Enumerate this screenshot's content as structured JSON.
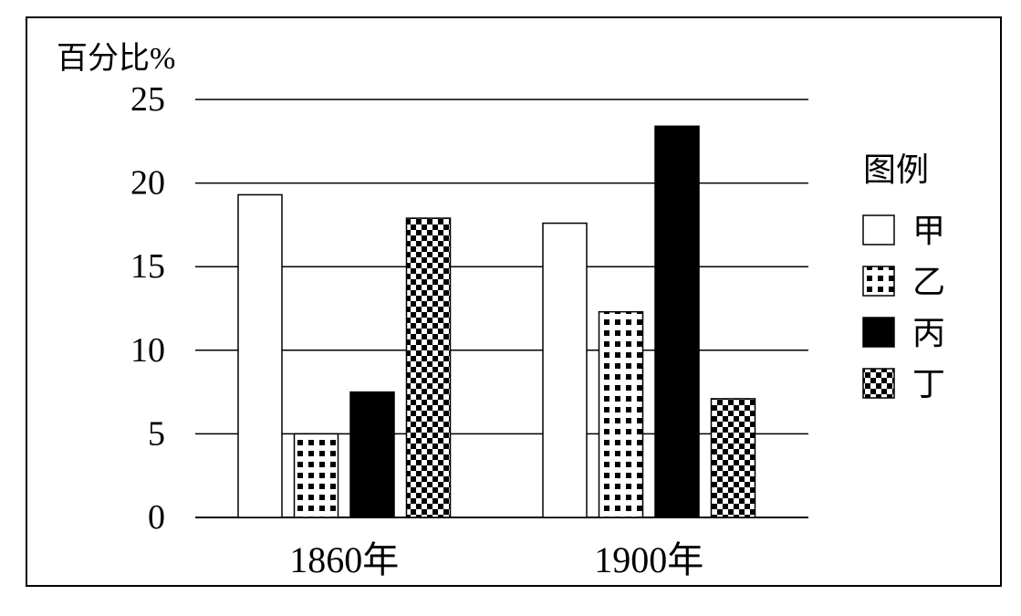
{
  "chart_data": {
    "type": "bar",
    "ylabel": "百分比%",
    "categories": [
      "1860年",
      "1900年"
    ],
    "ylim": [
      0,
      25
    ],
    "yticks": [
      0,
      5,
      10,
      15,
      20,
      25
    ],
    "grid": true,
    "legend": {
      "title": "图例",
      "position": "right"
    },
    "series": [
      {
        "name": "甲",
        "pattern": "white",
        "values": [
          19.3,
          17.6
        ]
      },
      {
        "name": "乙",
        "pattern": "dots",
        "values": [
          5.0,
          12.3
        ]
      },
      {
        "name": "丙",
        "pattern": "black",
        "values": [
          7.5,
          23.4
        ]
      },
      {
        "name": "丁",
        "pattern": "checker",
        "values": [
          17.9,
          7.1
        ]
      }
    ]
  }
}
